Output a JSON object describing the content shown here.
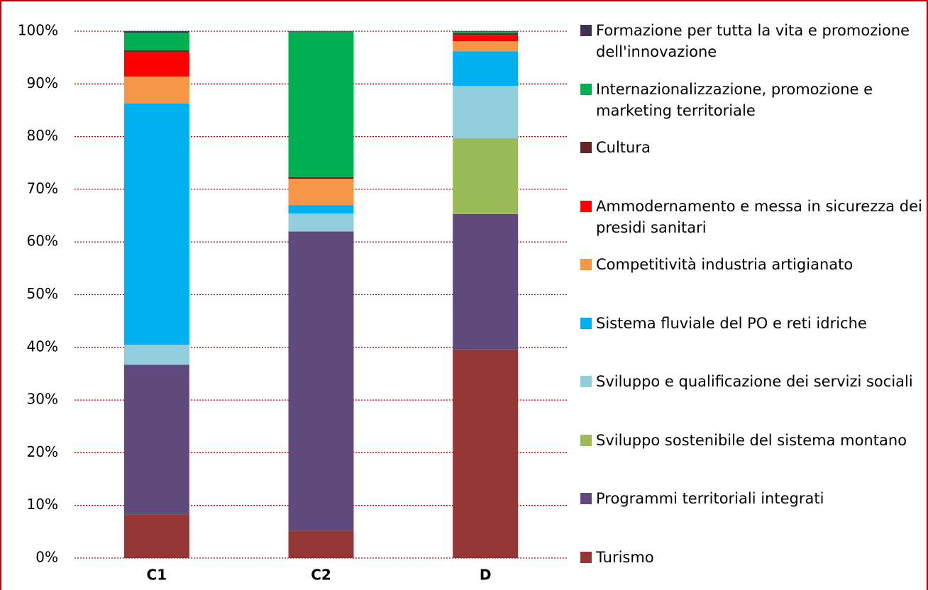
{
  "chart_data": {
    "type": "stacked_bar",
    "categories": [
      "C1",
      "C2",
      "D"
    ],
    "series": [
      {
        "name": "Turismo",
        "color": "#943634",
        "values": [
          8.3,
          5.2,
          39.6
        ]
      },
      {
        "name": "Programmi territoriali integrati",
        "color": "#604a7b",
        "values": [
          28.4,
          56.8,
          25.7
        ]
      },
      {
        "name": "Sviluppo sostenibile del sistema montano",
        "color": "#9bbb59",
        "values": [
          0,
          0,
          14.4
        ]
      },
      {
        "name": "Sviluppo e qualificazione dei servizi sociali",
        "color": "#92cddc",
        "values": [
          3.8,
          3.4,
          9.9
        ]
      },
      {
        "name": "Sistema fluviale del PO e reti idriche",
        "color": "#00b0f0",
        "values": [
          45.8,
          1.6,
          6.6
        ]
      },
      {
        "name": "Competitività industria artigianato",
        "color": "#f79646",
        "values": [
          5.1,
          5.0,
          1.9
        ]
      },
      {
        "name": "Ammodernamento e messa in sicurezza dei presidi sanitari",
        "color": "#ff0000",
        "values": [
          4.7,
          0,
          1.2
        ]
      },
      {
        "name": "Cultura",
        "color": "#632523",
        "values": [
          0.3,
          0.3,
          0.3
        ]
      },
      {
        "name": "Internazionalizzazione, promozione e marketing territoriale",
        "color": "#00b050",
        "values": [
          3.3,
          27.6,
          0.3
        ]
      },
      {
        "name": "Formazione per tutta la vita e promozione dell'innovazione",
        "color": "#403152",
        "values": [
          0.3,
          0.1,
          0.1
        ]
      }
    ],
    "ylim": [
      0,
      100
    ],
    "yticks": [
      {
        "value": 0,
        "label": "0%"
      },
      {
        "value": 10,
        "label": "10%"
      },
      {
        "value": 20,
        "label": "20%"
      },
      {
        "value": 30,
        "label": "30%"
      },
      {
        "value": 40,
        "label": "40%"
      },
      {
        "value": 50,
        "label": "50%"
      },
      {
        "value": 60,
        "label": "60%"
      },
      {
        "value": 70,
        "label": "70%"
      },
      {
        "value": 80,
        "label": "80%"
      },
      {
        "value": 90,
        "label": "90%"
      },
      {
        "value": 100,
        "label": "100%"
      }
    ],
    "grid": true,
    "legend": "right"
  }
}
